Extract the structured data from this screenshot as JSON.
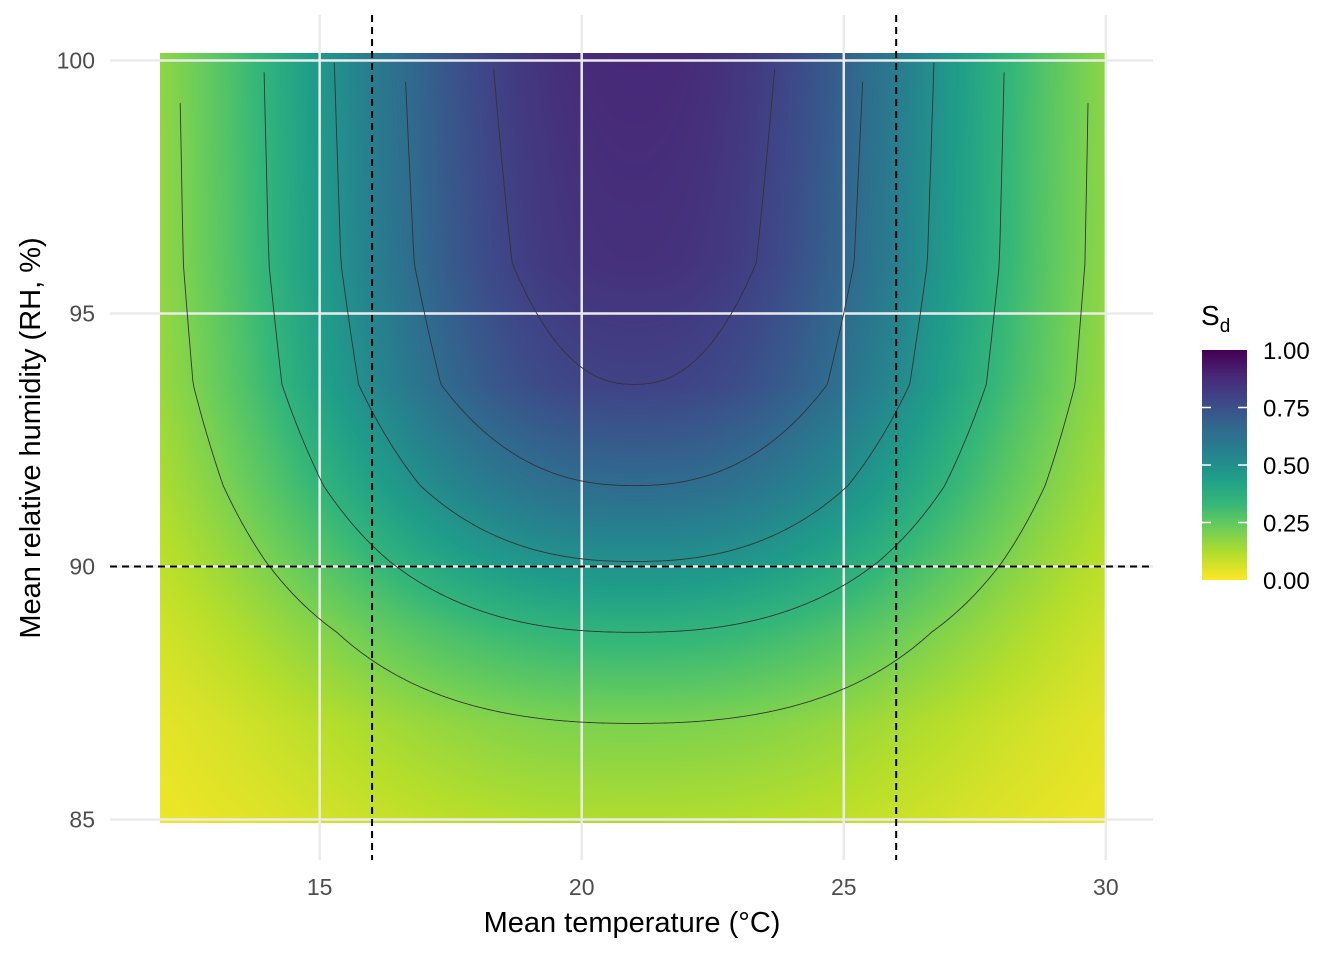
{
  "chart_data": {
    "type": "heatmap",
    "title": "",
    "xlabel": "Mean temperature (°C)",
    "ylabel": "Mean relative humidity (RH, %)",
    "xlim": [
      11.0,
      30.9
    ],
    "ylim": [
      84.2,
      100.9
    ],
    "x_ticks": [
      "15",
      "20",
      "25",
      "30"
    ],
    "x_tick_values": [
      15,
      20,
      25,
      30
    ],
    "y_ticks": [
      "85",
      "90",
      "95",
      "100"
    ],
    "y_tick_values": [
      85,
      90,
      95,
      100
    ],
    "raster_x_range": [
      12,
      30
    ],
    "raster_y_range": [
      85,
      100
    ],
    "grid": true,
    "model": {
      "optimum_temperature": 21.0,
      "temperature_width": 7.3,
      "temperature_exponent": 2.3,
      "rh_profile": [
        [
          85,
          0.12
        ],
        [
          86.9,
          0.2
        ],
        [
          88.7,
          0.35
        ],
        [
          90.1,
          0.5
        ],
        [
          91.6,
          0.65
        ],
        [
          93.6,
          0.8
        ],
        [
          96,
          0.86
        ],
        [
          100,
          0.885
        ]
      ]
    },
    "contour_levels": [
      0.2,
      0.35,
      0.5,
      0.65,
      0.8
    ],
    "reference_lines": {
      "vertical": [
        16,
        26
      ],
      "horizontal": [
        90
      ]
    },
    "legend": {
      "title": "S",
      "title_subscript": "d",
      "position": "right",
      "range": [
        0,
        1
      ],
      "ticks": [
        "0.00",
        "0.25",
        "0.50",
        "0.75",
        "1.00"
      ],
      "tick_values": [
        0,
        0.25,
        0.5,
        0.75,
        1.0
      ],
      "palette": "viridis (reversed)"
    }
  }
}
